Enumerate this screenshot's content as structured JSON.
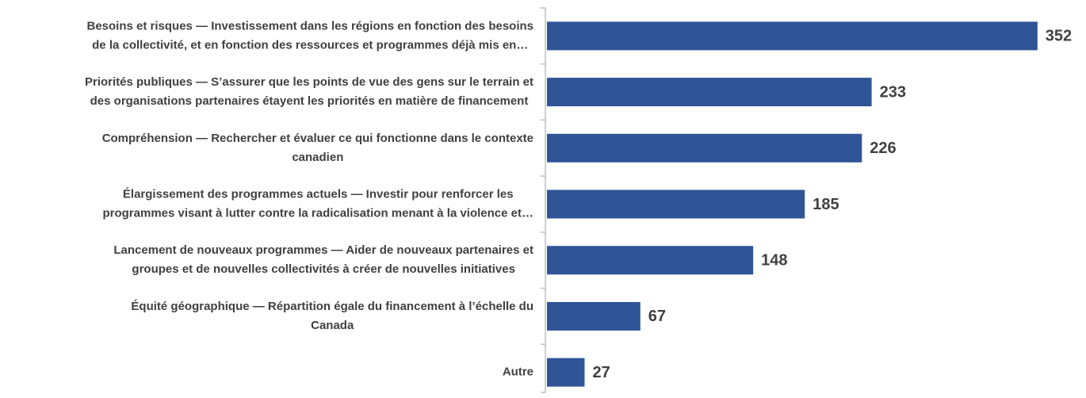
{
  "chart_data": {
    "type": "bar",
    "orientation": "horizontal",
    "categories": [
      [
        "Besoins et risques — Investissement dans les régions en fonction des besoins",
        "de la collectivité, et en fonction des ressources et programmes déjà mis en…"
      ],
      [
        "Priorités publiques — S’assurer que les points de vue des gens sur le terrain et",
        "des organisations partenaires étayent les priorités en matière de financement"
      ],
      [
        "Compréhension — Rechercher et évaluer ce qui fonctionne dans le contexte",
        "canadien"
      ],
      [
        "Élargissement des programmes actuels — Investir pour renforcer les",
        "programmes visant à lutter contre la radicalisation menant à la violence et…"
      ],
      [
        "Lancement de nouveaux programmes — Aider de nouveaux partenaires et",
        "groupes et de nouvelles collectivités à créer de nouvelles initiatives"
      ],
      [
        "Équité géographique — Répartition égale du financement à l’échelle du",
        "Canada"
      ],
      [
        "Autre"
      ]
    ],
    "values": [
      352,
      233,
      226,
      185,
      148,
      67,
      27
    ],
    "color": "#2f5597",
    "xlim": [
      0,
      380
    ]
  }
}
